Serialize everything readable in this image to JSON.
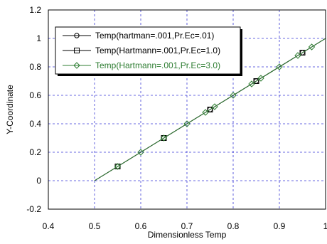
{
  "chart_data": {
    "type": "line",
    "xlabel": "Dimensionless Temp",
    "ylabel": "Y-Coordinate",
    "xlim": [
      0.4,
      1.0
    ],
    "ylim": [
      -0.2,
      1.2
    ],
    "xticks": [
      "0.4",
      "0.5",
      "0.6",
      "0.7",
      "0.8",
      "0.9",
      "1"
    ],
    "yticks": [
      "-0.2",
      "0",
      "0.2",
      "0.4",
      "0.6",
      "0.8",
      "1",
      "1.2"
    ],
    "grid": true,
    "legend_position": "top-left",
    "series": [
      {
        "name": "Temp(hartman=.001,Pr.Ec=.01)",
        "color": "#000000",
        "marker": "circle",
        "x": [
          0.5,
          0.55,
          0.65,
          0.75,
          0.85,
          0.95,
          1.0
        ],
        "y": [
          0.0,
          0.1,
          0.3,
          0.5,
          0.7,
          0.9,
          1.0
        ]
      },
      {
        "name": "Temp(Hartmann=.001,Pr.Ec=1.0)",
        "color": "#000000",
        "marker": "square",
        "x": [
          0.5,
          0.55,
          0.65,
          0.75,
          0.85,
          0.95,
          1.0
        ],
        "y": [
          0.0,
          0.1,
          0.3,
          0.5,
          0.7,
          0.9,
          1.0
        ]
      },
      {
        "name": "Temp(Hartmann=.001,Pr.Ec=3.0)",
        "color": "#2e7d32",
        "marker": "diamond",
        "x": [
          0.5,
          0.55,
          0.6,
          0.65,
          0.7,
          0.74,
          0.76,
          0.8,
          0.84,
          0.86,
          0.9,
          0.94,
          0.97,
          1.0
        ],
        "y": [
          0.0,
          0.1,
          0.2,
          0.3,
          0.4,
          0.48,
          0.52,
          0.6,
          0.68,
          0.72,
          0.8,
          0.88,
          0.94,
          1.0
        ]
      }
    ]
  }
}
